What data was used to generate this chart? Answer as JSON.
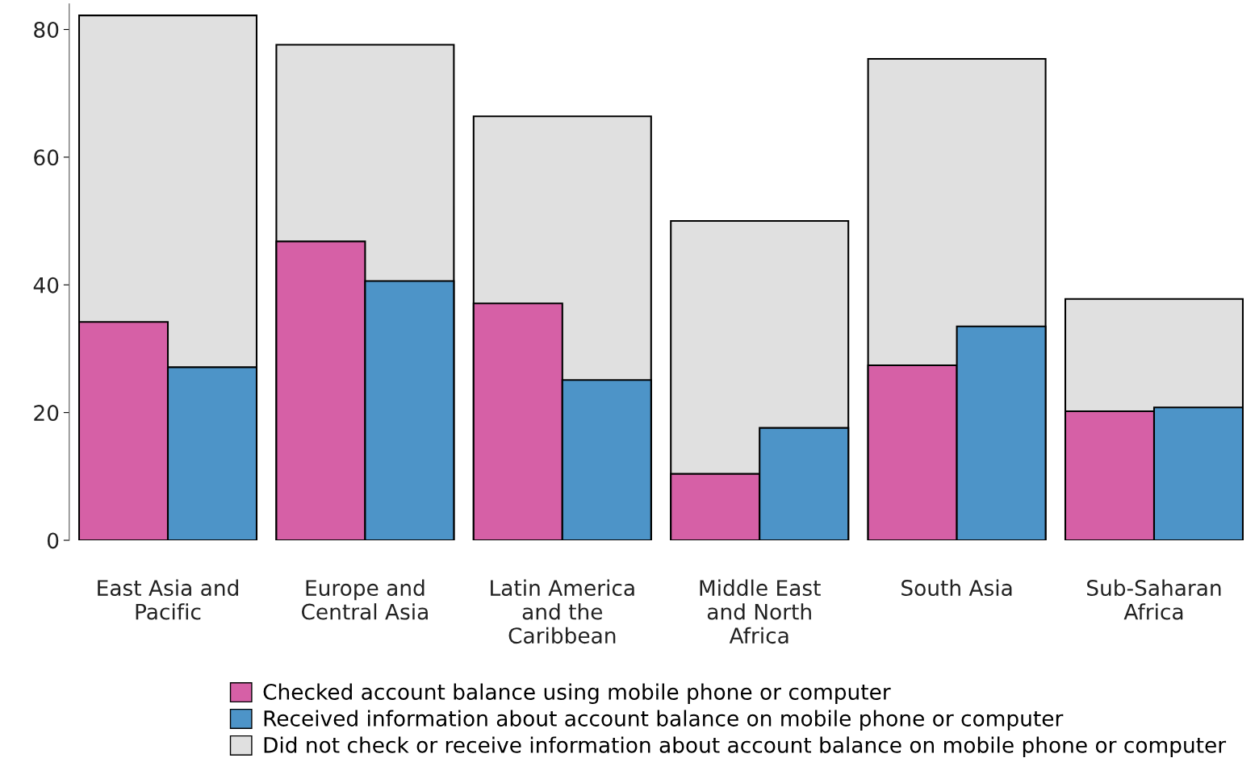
{
  "chart_data": {
    "type": "bar",
    "categories": [
      "East Asia and\nPacific",
      "Europe and\nCentral Asia",
      "Latin America\nand the\nCaribbean",
      "Middle East\nand North\nAfrica",
      "South Asia",
      "Sub-Saharan\nAfrica"
    ],
    "series": [
      {
        "name": "Checked account balance using mobile phone or computer",
        "color": "#d660a6",
        "values": [
          34.2,
          46.8,
          37.1,
          10.4,
          27.4,
          20.2
        ]
      },
      {
        "name": "Received information about account balance on mobile phone or computer",
        "color": "#4d94c8",
        "values": [
          27.1,
          40.6,
          25.1,
          17.6,
          33.5,
          20.8
        ]
      },
      {
        "name": "Did not check or receive information about account balance on mobile phone or computer",
        "color": "#e0e0e0",
        "values": [
          82.2,
          77.6,
          66.4,
          50.0,
          75.4,
          37.8
        ]
      }
    ],
    "ylim": [
      0,
      84
    ],
    "yticks": [
      0,
      20,
      40,
      60,
      80
    ],
    "grid": false,
    "legend": "bottom"
  }
}
